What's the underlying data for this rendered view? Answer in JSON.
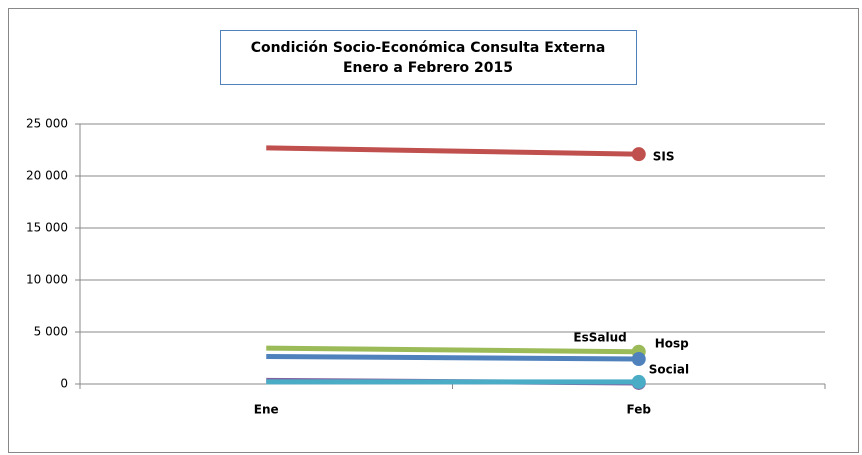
{
  "chart_data": {
    "type": "line",
    "title": "Condición Socio-Económica Consulta Externa",
    "subtitle": "Enero a Febrero  2015",
    "categories": [
      "Ene",
      "Feb"
    ],
    "series": [
      {
        "name": "SIS",
        "color": "#c0504d",
        "values": [
          22700,
          22100
        ]
      },
      {
        "name": "EsSalud",
        "color": "#9bbb59",
        "values": [
          3450,
          3100
        ]
      },
      {
        "name": "Hosp",
        "color": "#4f81bd",
        "values": [
          2650,
          2400
        ]
      },
      {
        "color": "#8064a2",
        "values": [
          350,
          100
        ]
      },
      {
        "name": "Social",
        "color": "#4bacc6",
        "values": [
          200,
          200
        ]
      }
    ],
    "ylim": [
      0,
      25000
    ],
    "yticks": [
      0,
      {
        "value": 5000,
        "label": "5 000"
      },
      {
        "value": 10000,
        "label": "10 000"
      },
      {
        "value": 15000,
        "label": "15 000"
      },
      {
        "value": 20000,
        "label": "20 000"
      },
      {
        "value": 25000,
        "label": "25 000"
      }
    ],
    "grid": true
  }
}
